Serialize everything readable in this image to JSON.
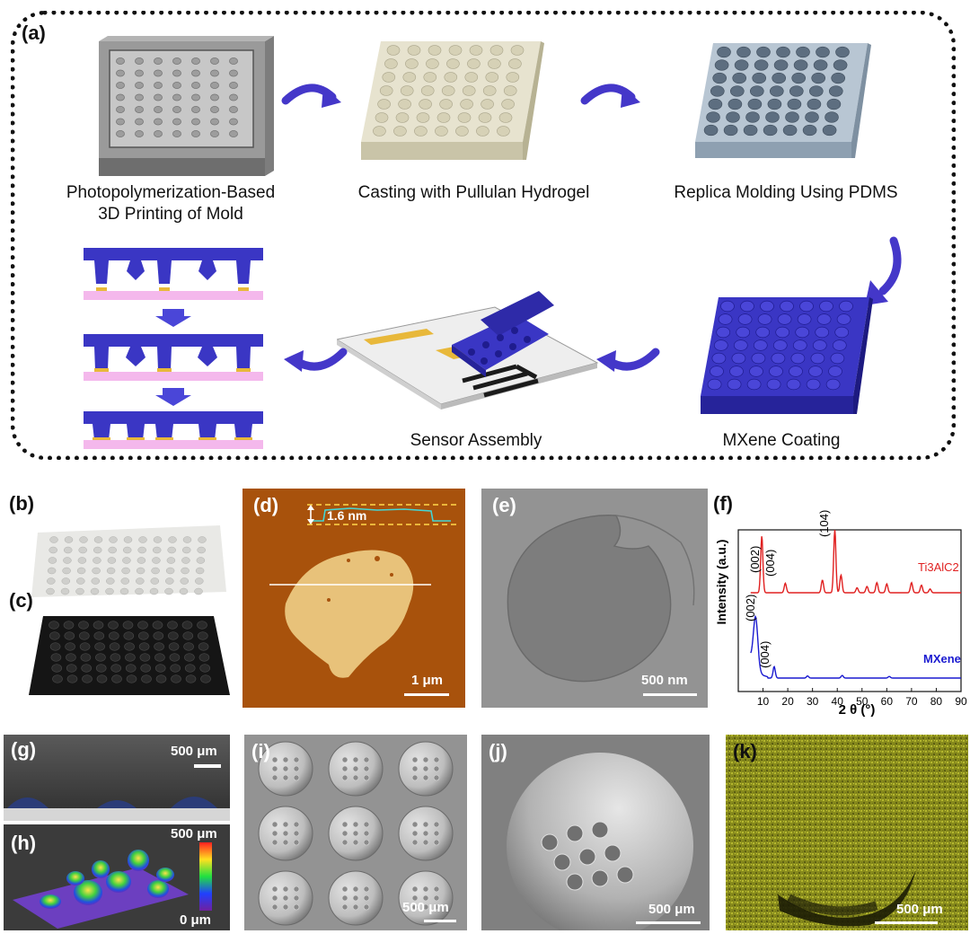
{
  "panel_a": {
    "label": "(a)",
    "steps": {
      "s1_line1": "Photopolymerization-Based",
      "s1_line2": "3D Printing of Mold",
      "s2": "Casting with Pullulan Hydrogel",
      "s3": "Replica Molding Using PDMS",
      "s4": "MXene Coating",
      "s5": "Sensor Assembly"
    }
  },
  "panels": {
    "b": "(b)",
    "c": "(c)",
    "d": "(d)",
    "e": "(e)",
    "f": "(f)",
    "g": "(g)",
    "h": "(h)",
    "i": "(i)",
    "j": "(j)",
    "k": "(k)"
  },
  "scalebars": {
    "d": "1 μm",
    "d_height": "1.6 nm",
    "e": "500 nm",
    "g": "500 μm",
    "h_top": "500 μm",
    "h_bottom": "0 μm",
    "i": "500 μm",
    "j": "500 μm",
    "k": "500 μm"
  },
  "chart_data": {
    "type": "line",
    "xlabel": "2 θ (°)",
    "ylabel": "Intensity (a.u.)",
    "xlim": [
      0,
      90
    ],
    "xticks": [
      10,
      20,
      30,
      40,
      50,
      60,
      70,
      80,
      90
    ],
    "series": [
      {
        "name": "Ti3AlC2",
        "color": "#e02020",
        "peaks": [
          [
            9.5,
            0.9
          ],
          [
            19,
            0.15
          ],
          [
            34,
            0.2
          ],
          [
            39,
            1.0
          ],
          [
            41.5,
            0.28
          ],
          [
            48,
            0.08
          ],
          [
            52,
            0.1
          ],
          [
            56,
            0.16
          ],
          [
            60,
            0.14
          ],
          [
            70,
            0.16
          ],
          [
            74,
            0.12
          ],
          [
            77.5,
            0.06
          ]
        ]
      },
      {
        "name": "MXene",
        "color": "#1a1ad0",
        "peaks": [
          [
            7,
            1.0
          ],
          [
            14.5,
            0.22
          ],
          [
            28,
            0.04
          ],
          [
            42,
            0.05
          ],
          [
            61,
            0.03
          ]
        ]
      }
    ],
    "annotations": [
      "(002)",
      "(004)",
      "(104)",
      "(002)",
      "(004)"
    ],
    "colors": {
      "ti3alc2": "#e02020",
      "mxene": "#1a1ad0"
    }
  }
}
